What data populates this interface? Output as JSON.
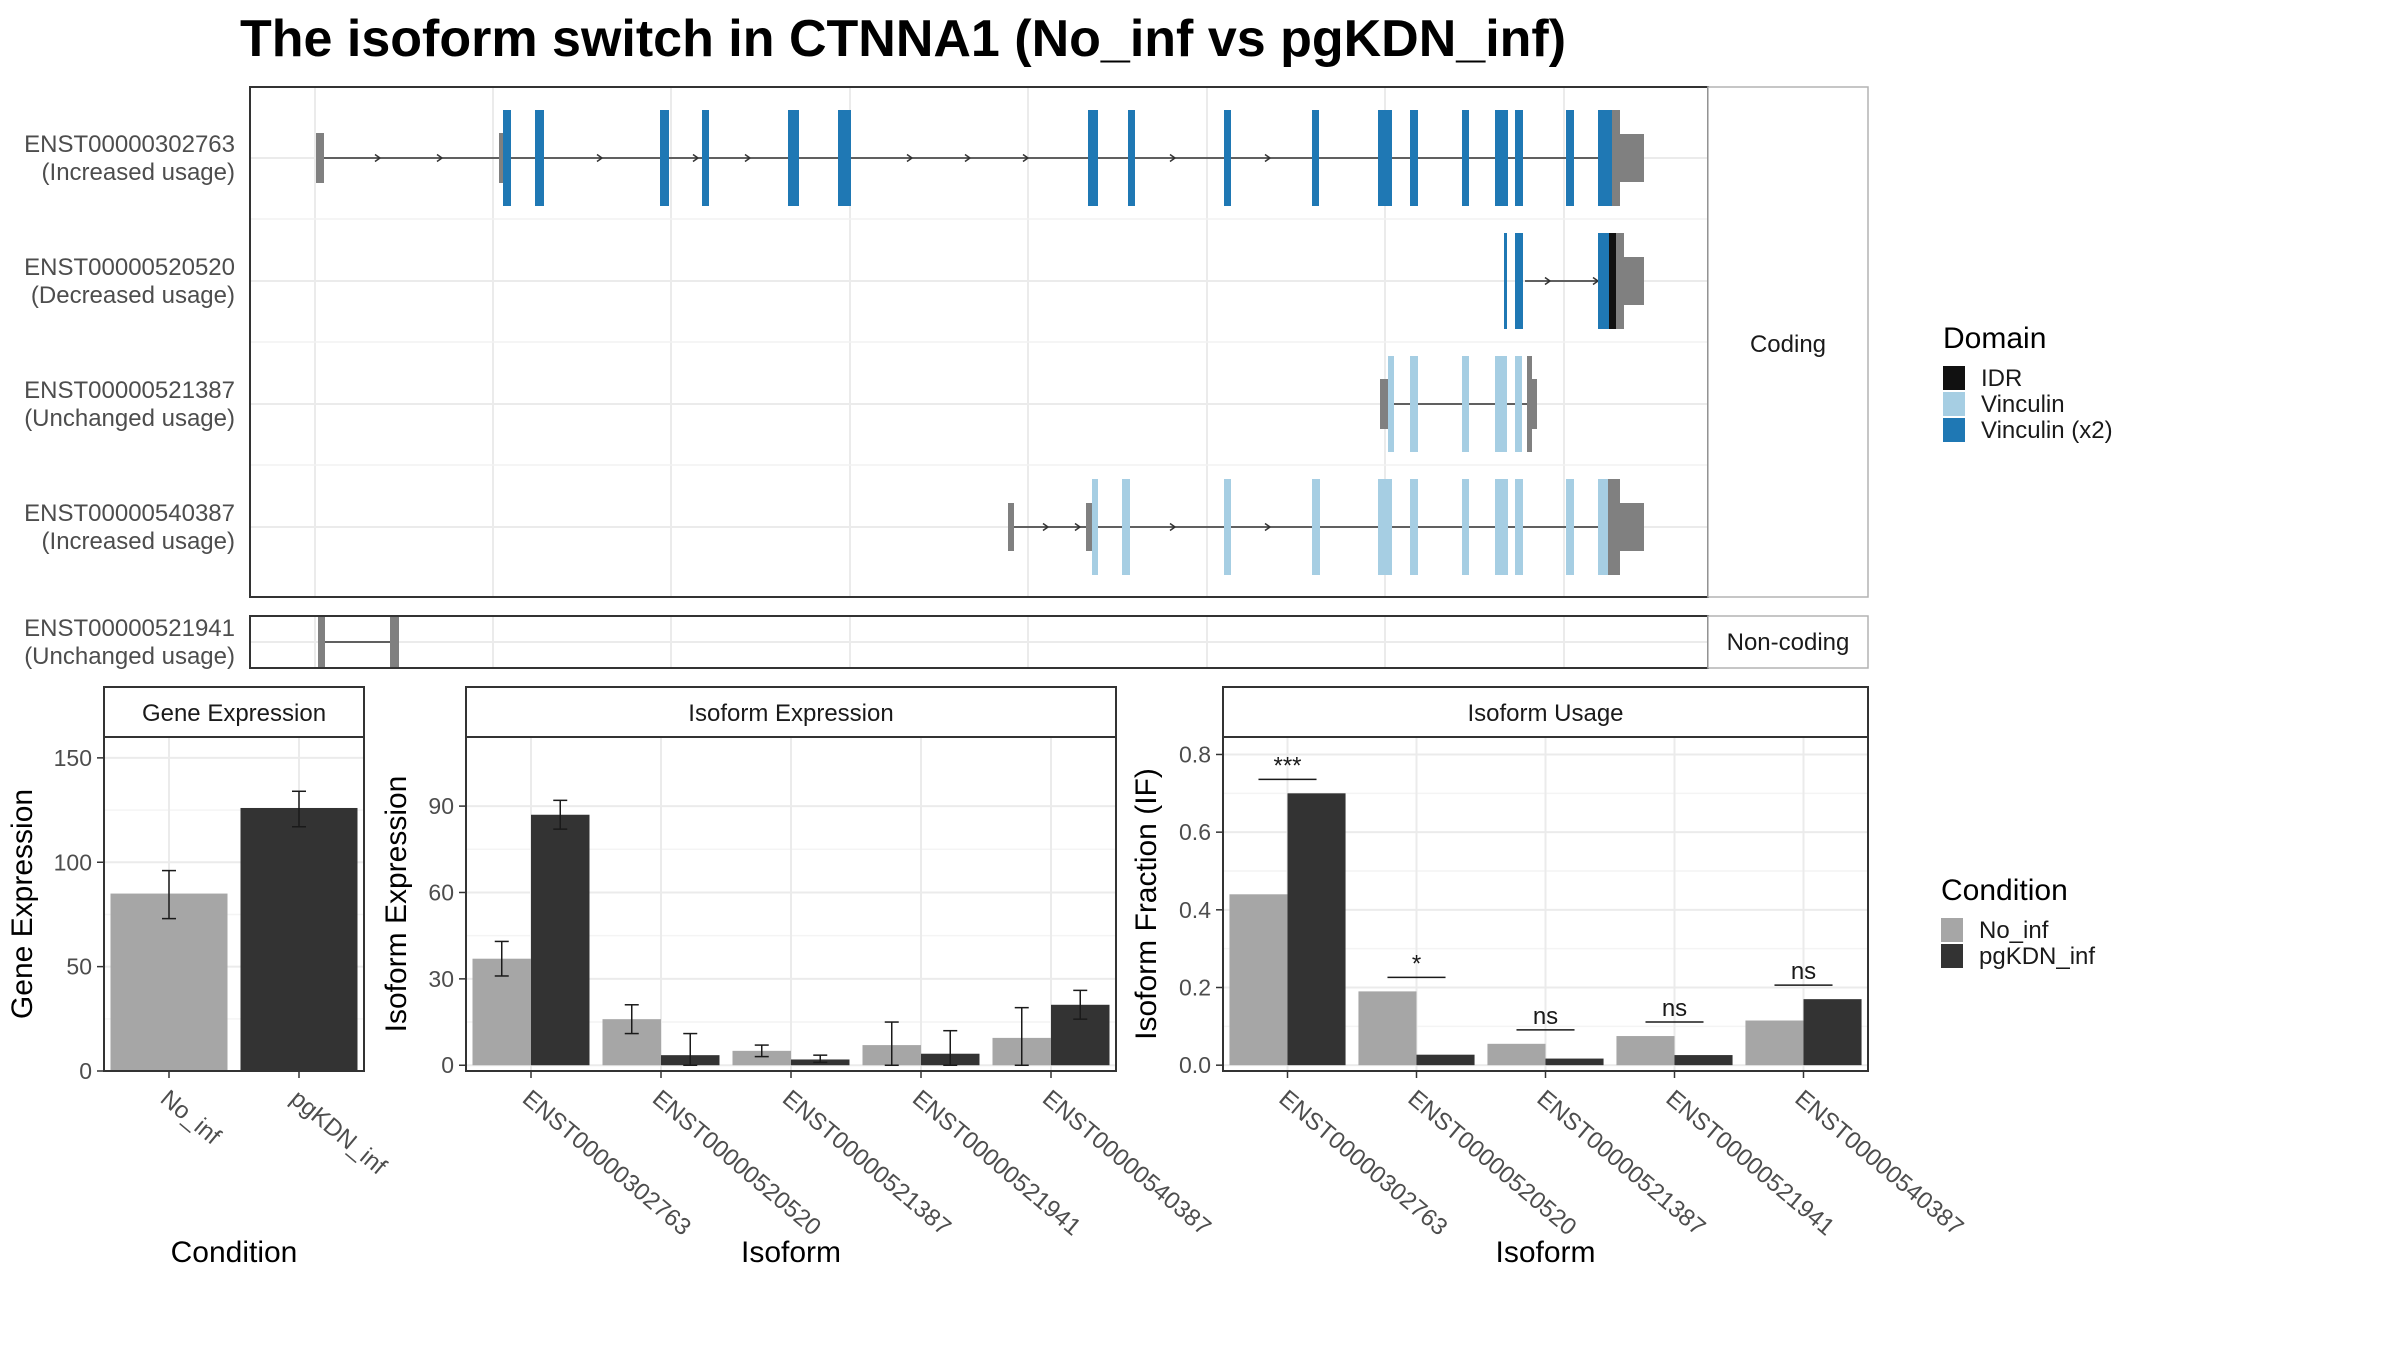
{
  "title": "The isoform switch in CTNNA1 (No_inf vs pgKDN_inf)",
  "facets": {
    "coding": "Coding",
    "noncoding": "Non-coding"
  },
  "transcripts": [
    {
      "id": "ENST00000302763",
      "usage": "(Increased usage)"
    },
    {
      "id": "ENST00000520520",
      "usage": "(Decreased usage)"
    },
    {
      "id": "ENST00000521387",
      "usage": "(Unchanged usage)"
    },
    {
      "id": "ENST00000540387",
      "usage": "(Increased usage)"
    },
    {
      "id": "ENST00000521941",
      "usage": "(Unchanged usage)"
    }
  ],
  "domain_legend": {
    "title": "Domain",
    "items": [
      {
        "label": "IDR",
        "color": "#111111"
      },
      {
        "label": "Vinculin",
        "color": "#a6cee3"
      },
      {
        "label": "Vinculin (x2)",
        "color": "#1f78b4"
      }
    ]
  },
  "condition_legend": {
    "title": "Condition",
    "items": [
      {
        "label": "No_inf",
        "color": "#a6a6a6"
      },
      {
        "label": "pgKDN_inf",
        "color": "#333333"
      }
    ]
  },
  "chart_data": [
    {
      "type": "bar",
      "panel": "Gene Expression",
      "categories": [
        "No_inf",
        "pgKDN_inf"
      ],
      "values": [
        85,
        126
      ],
      "error_low": [
        73,
        117
      ],
      "error_high": [
        96,
        134
      ],
      "colors": [
        "#a6a6a6",
        "#333333"
      ],
      "xlabel": "Condition",
      "ylabel": "Gene Expression",
      "ylim": [
        0,
        160
      ],
      "yticks": [
        0,
        50,
        100,
        150
      ]
    },
    {
      "type": "bar",
      "panel": "Isoform Expression",
      "categories": [
        "ENST00000302763",
        "ENST00000520520",
        "ENST00000521387",
        "ENST00000521941",
        "ENST00000540387"
      ],
      "series": [
        {
          "name": "No_inf",
          "values": [
            37,
            16,
            5,
            7,
            9.5
          ],
          "error_low": [
            31,
            11,
            3,
            0,
            0
          ],
          "error_high": [
            43,
            21,
            7,
            15,
            20
          ]
        },
        {
          "name": "pgKDN_inf",
          "values": [
            87,
            3.5,
            2,
            4,
            21
          ],
          "error_low": [
            82,
            0,
            1,
            0,
            16
          ],
          "error_high": [
            92,
            11,
            3.5,
            12,
            26
          ]
        }
      ],
      "xlabel": "Isoform",
      "ylabel": "Isoform Expression",
      "ylim": [
        -2,
        114
      ],
      "yticks": [
        0,
        30,
        60,
        90
      ]
    },
    {
      "type": "bar",
      "panel": "Isoform Usage",
      "categories": [
        "ENST00000302763",
        "ENST00000520520",
        "ENST00000521387",
        "ENST00000521941",
        "ENST00000540387"
      ],
      "series": [
        {
          "name": "No_inf",
          "values": [
            0.44,
            0.19,
            0.055,
            0.075,
            0.115
          ]
        },
        {
          "name": "pgKDN_inf",
          "values": [
            0.7,
            0.027,
            0.017,
            0.026,
            0.17
          ]
        }
      ],
      "significance": [
        "***",
        "*",
        "ns",
        "ns",
        "ns"
      ],
      "xlabel": "Isoform",
      "ylabel": "Isoform Fraction (IF)",
      "ylim": [
        -0.015,
        0.845
      ],
      "yticks": [
        0.0,
        0.2,
        0.4,
        0.6,
        0.8
      ],
      "ytick_labels": [
        "0.0",
        "0.2",
        "0.4",
        "0.6",
        "0.8"
      ]
    }
  ]
}
